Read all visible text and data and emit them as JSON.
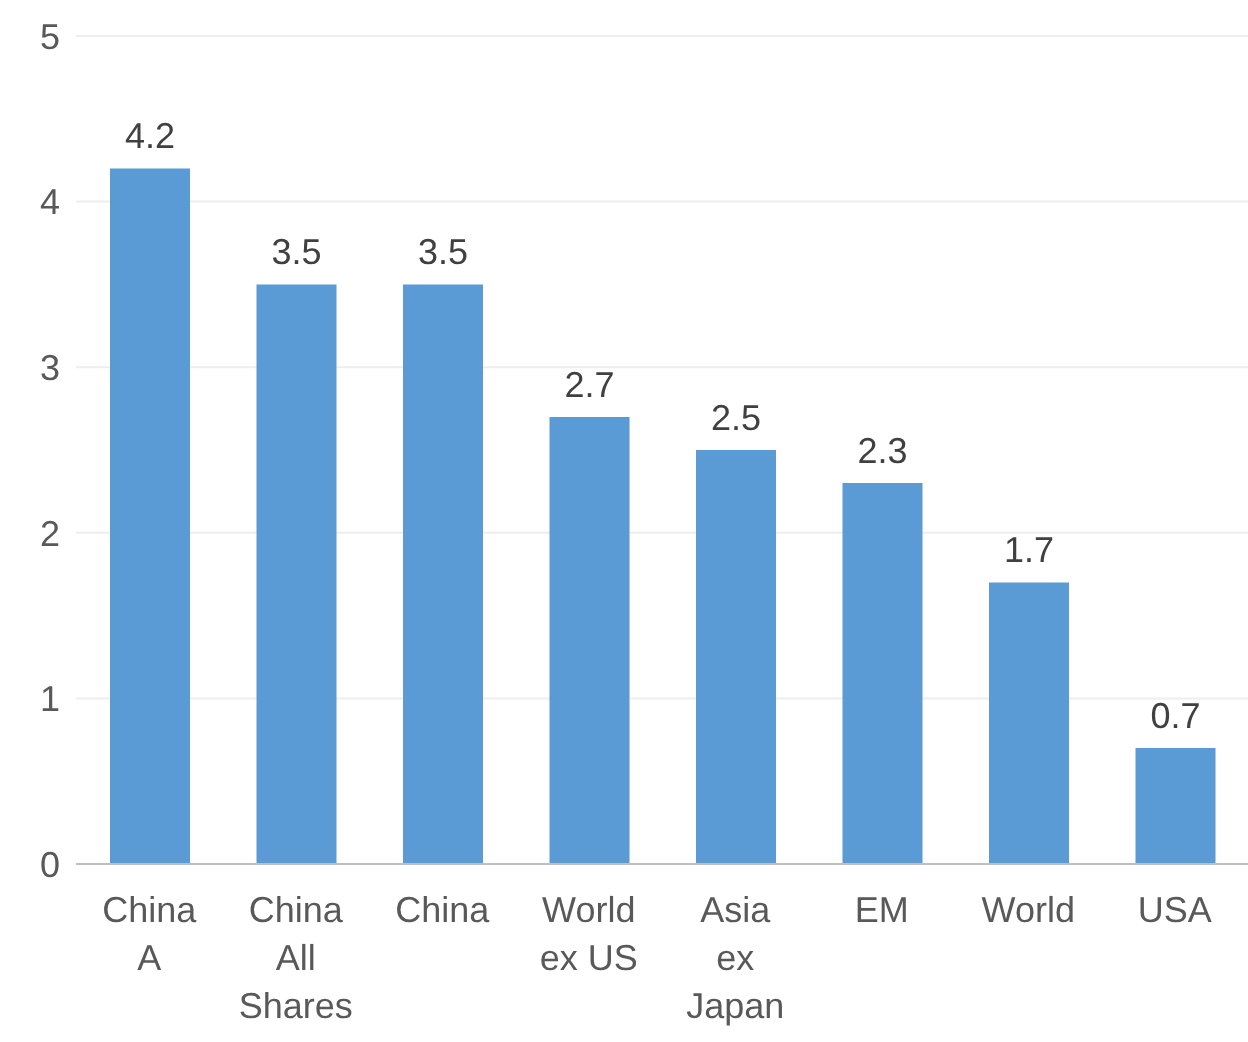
{
  "chart_data": {
    "type": "bar",
    "categories": [
      "China A",
      "China All Shares",
      "China",
      "World ex US",
      "Asia ex Japan",
      "EM",
      "World",
      "USA"
    ],
    "values": [
      4.2,
      3.5,
      3.5,
      2.7,
      2.5,
      2.3,
      1.7,
      0.7
    ],
    "color": "#5b9bd5",
    "ylim": [
      0,
      5
    ],
    "yticks": [
      0,
      1,
      2,
      3,
      4,
      5
    ],
    "grid": "y",
    "data_labels": true
  }
}
